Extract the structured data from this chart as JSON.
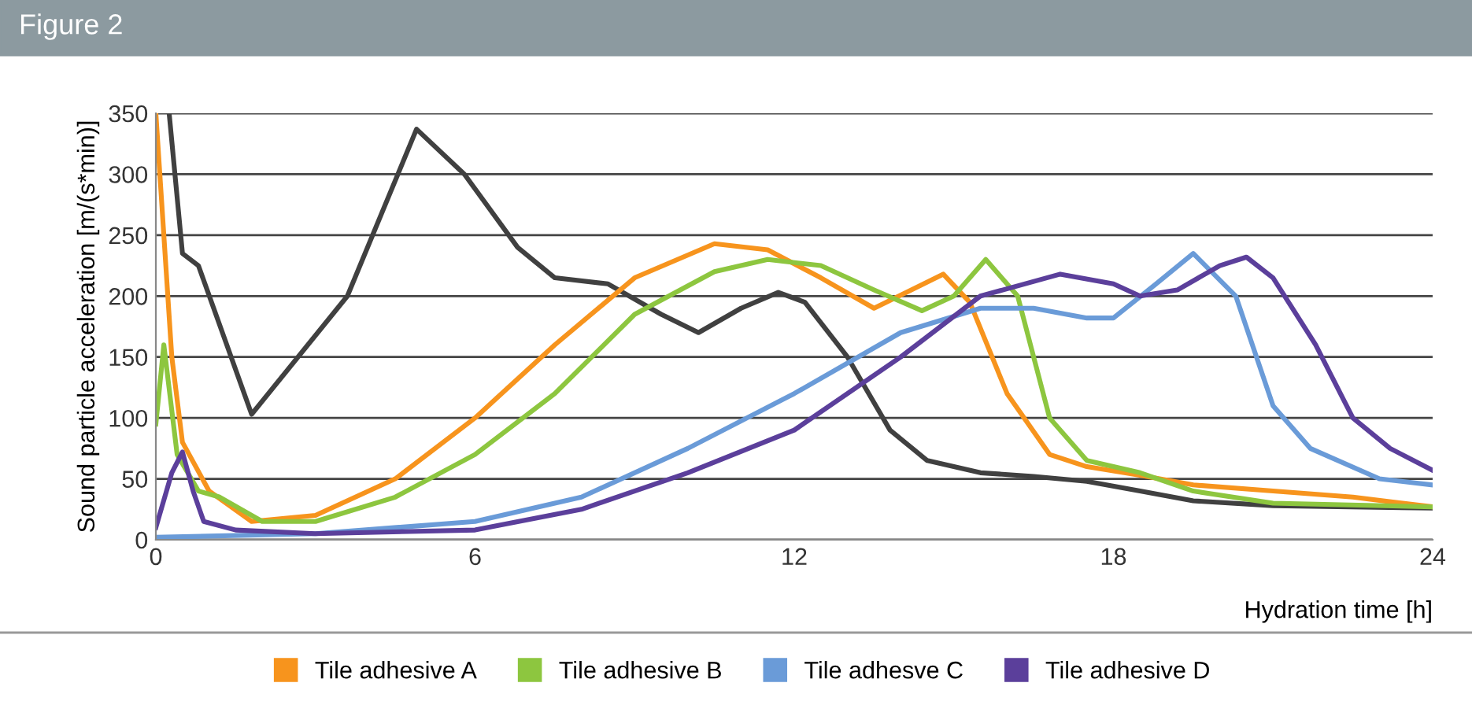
{
  "chart_data": {
    "type": "line",
    "title": "Figure 2",
    "xlabel": "Hydration time [h]",
    "ylabel": "Sound particle acceleration [m/(s*min)]",
    "xlim": [
      0,
      24
    ],
    "xticks": [
      0,
      6,
      12,
      18,
      24
    ],
    "ylim": [
      0,
      350
    ],
    "yticks": [
      0,
      50,
      100,
      150,
      200,
      250,
      300,
      350
    ],
    "grid": "y",
    "legend": "bottom",
    "marker": "none",
    "line_style": "solid",
    "series": [
      {
        "color": "#404040",
        "x": [
          0.25,
          0.5,
          0.8,
          1.8,
          3.6,
          4.9,
          5.8,
          6.8,
          7.5,
          8.5,
          9.5,
          10.2,
          11,
          11.7,
          12.2,
          13,
          13.8,
          14.5,
          15.5,
          16.5,
          17.5,
          18.5,
          19.5,
          21,
          24
        ],
        "values": [
          350,
          235,
          225,
          103,
          200,
          337,
          300,
          240,
          215,
          210,
          185,
          170,
          190,
          203,
          195,
          150,
          90,
          65,
          55,
          52,
          48,
          40,
          32,
          28,
          26
        ]
      },
      {
        "name": "Tile adhesive A",
        "color": "#f7941d",
        "x": [
          0,
          0.3,
          0.5,
          1,
          1.8,
          3,
          4.5,
          6,
          7.5,
          9,
          10.5,
          11.5,
          12.5,
          13.5,
          14.2,
          14.8,
          15.3,
          16,
          16.8,
          17.5,
          18.5,
          19.5,
          21,
          22.5,
          24
        ],
        "values": [
          350,
          150,
          80,
          40,
          15,
          20,
          50,
          100,
          160,
          215,
          243,
          238,
          215,
          190,
          205,
          218,
          195,
          120,
          70,
          60,
          53,
          45,
          40,
          35,
          27
        ]
      },
      {
        "name": "Tile adhesive B",
        "color": "#8dc63f",
        "x": [
          0,
          0.15,
          0.4,
          0.8,
          1.2,
          2,
          3,
          4.5,
          6,
          7.5,
          9,
          10.5,
          11.5,
          12.5,
          13.5,
          14.4,
          15,
          15.6,
          16.2,
          16.8,
          17.5,
          18.5,
          19.5,
          21,
          24
        ],
        "values": [
          95,
          160,
          70,
          40,
          35,
          15,
          15,
          35,
          70,
          120,
          185,
          220,
          230,
          225,
          205,
          188,
          200,
          230,
          200,
          100,
          65,
          55,
          40,
          30,
          27
        ]
      },
      {
        "name": "Tile adhesve C",
        "color": "#6a9bd8",
        "x": [
          0,
          3,
          6,
          8,
          10,
          12,
          14,
          15.5,
          16.5,
          17.5,
          18,
          18.8,
          19.5,
          20.3,
          21,
          21.7,
          23,
          24
        ],
        "values": [
          2,
          5,
          15,
          35,
          75,
          120,
          170,
          190,
          190,
          182,
          182,
          210,
          235,
          200,
          110,
          75,
          50,
          45
        ]
      },
      {
        "name": "Tile adhesive D",
        "color": "#5b3f9b",
        "x": [
          0,
          0.3,
          0.5,
          0.7,
          0.9,
          1.5,
          3,
          6,
          8,
          10,
          12,
          14,
          15.5,
          17,
          18,
          18.5,
          19.2,
          20,
          20.5,
          21,
          21.8,
          22.5,
          23.2,
          24
        ],
        "values": [
          10,
          55,
          72,
          40,
          15,
          8,
          5,
          8,
          25,
          55,
          90,
          150,
          200,
          218,
          210,
          200,
          205,
          225,
          232,
          215,
          160,
          100,
          75,
          57
        ]
      }
    ]
  }
}
